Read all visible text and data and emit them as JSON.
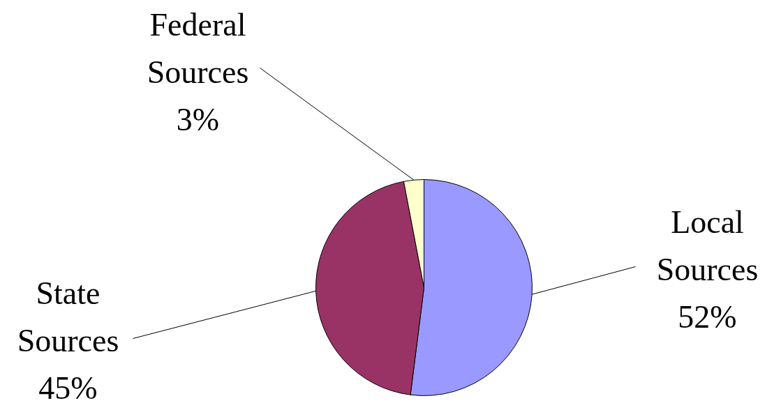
{
  "chart_data": {
    "type": "pie",
    "categories": [
      "Local Sources",
      "State Sources",
      "Federal Sources"
    ],
    "values": [
      52,
      45,
      3
    ],
    "colors": [
      "#9999ff",
      "#993366",
      "#ffffcc"
    ],
    "value_labels": [
      "52%",
      "45%",
      "3%"
    ]
  }
}
